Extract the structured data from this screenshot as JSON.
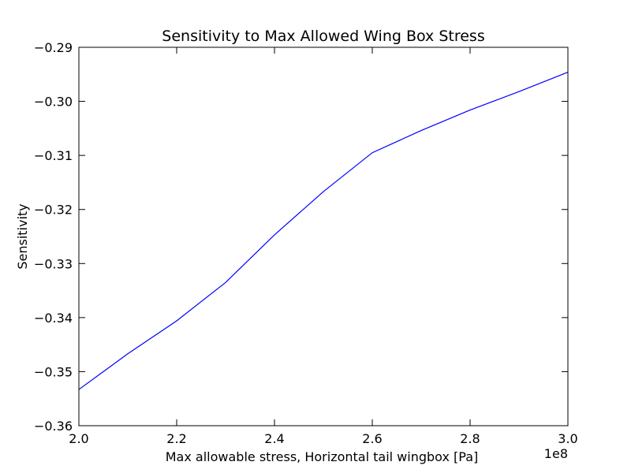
{
  "chart_data": {
    "type": "line",
    "title": "Sensitivity to Max Allowed Wing Box Stress",
    "xlabel": "Max allowable stress, Horizontal tail wingbox [Pa]",
    "ylabel": "Sensitivity",
    "x_offset_label": "1e8",
    "xlim": [
      2.0,
      3.0
    ],
    "ylim": [
      -0.36,
      -0.29
    ],
    "x_ticks": [
      2.0,
      2.2,
      2.4,
      2.6,
      2.8,
      3.0
    ],
    "x_tick_labels": [
      "2.0",
      "2.2",
      "2.4",
      "2.6",
      "2.8",
      "3.0"
    ],
    "y_ticks": [
      -0.36,
      -0.35,
      -0.34,
      -0.33,
      -0.32,
      -0.31,
      -0.3,
      -0.29
    ],
    "y_tick_labels": [
      "−0.36",
      "−0.35",
      "−0.34",
      "−0.33",
      "−0.32",
      "−0.31",
      "−0.30",
      "−0.29"
    ],
    "grid": false,
    "series": [
      {
        "color": "#0000ff",
        "x": [
          2.0,
          2.1,
          2.2,
          2.3,
          2.4,
          2.5,
          2.6,
          2.7,
          2.8,
          2.9,
          3.0
        ],
        "y": [
          -0.3533,
          -0.3467,
          -0.3406,
          -0.3335,
          -0.3247,
          -0.3167,
          -0.3095,
          -0.3054,
          -0.3016,
          -0.2982,
          -0.2946
        ]
      }
    ]
  }
}
